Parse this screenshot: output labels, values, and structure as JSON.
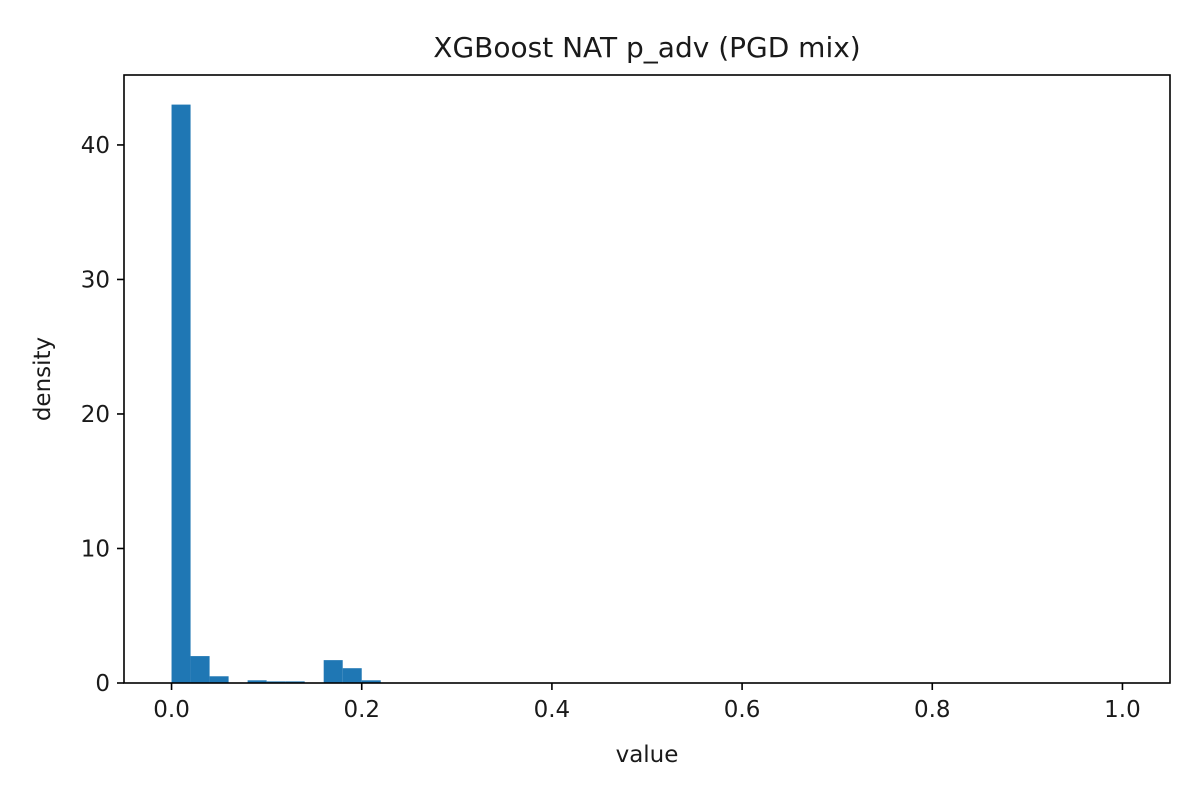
{
  "chart_data": {
    "type": "bar",
    "title": "XGBoost NAT p_adv (PGD mix)",
    "xlabel": "value",
    "ylabel": "density",
    "xlim": [
      -0.05,
      1.05
    ],
    "ylim": [
      0,
      45.2
    ],
    "grid": false,
    "bar_color": "#1f77b4",
    "bin_width": 0.02,
    "bins": [
      {
        "x0": 0.0,
        "x1": 0.02,
        "value": 43.0
      },
      {
        "x0": 0.02,
        "x1": 0.04,
        "value": 2.0
      },
      {
        "x0": 0.04,
        "x1": 0.06,
        "value": 0.5
      },
      {
        "x0": 0.06,
        "x1": 0.08,
        "value": 0.0
      },
      {
        "x0": 0.08,
        "x1": 0.1,
        "value": 0.2
      },
      {
        "x0": 0.1,
        "x1": 0.12,
        "value": 0.12
      },
      {
        "x0": 0.12,
        "x1": 0.14,
        "value": 0.12
      },
      {
        "x0": 0.14,
        "x1": 0.16,
        "value": 0.0
      },
      {
        "x0": 0.16,
        "x1": 0.18,
        "value": 1.7
      },
      {
        "x0": 0.18,
        "x1": 0.2,
        "value": 1.1
      },
      {
        "x0": 0.2,
        "x1": 0.22,
        "value": 0.2
      }
    ],
    "xticks": [
      {
        "value": 0.0,
        "label": "0.0"
      },
      {
        "value": 0.2,
        "label": "0.2"
      },
      {
        "value": 0.4,
        "label": "0.4"
      },
      {
        "value": 0.6,
        "label": "0.6"
      },
      {
        "value": 0.8,
        "label": "0.8"
      },
      {
        "value": 1.0,
        "label": "1.0"
      }
    ],
    "yticks": [
      {
        "value": 0,
        "label": "0"
      },
      {
        "value": 10,
        "label": "10"
      },
      {
        "value": 20,
        "label": "20"
      },
      {
        "value": 30,
        "label": "30"
      },
      {
        "value": 40,
        "label": "40"
      }
    ]
  }
}
